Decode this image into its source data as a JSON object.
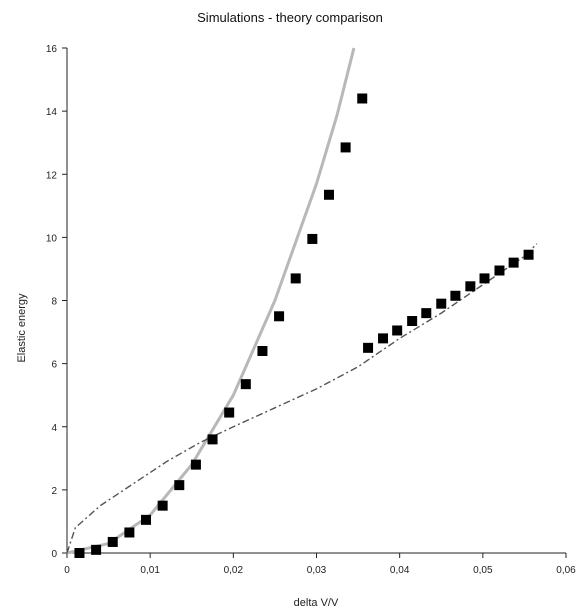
{
  "chart_data": {
    "type": "scatter",
    "title": "Simulations - theory comparison",
    "xlabel": "delta V/V",
    "ylabel": "Elastic energy",
    "xlim": [
      0,
      0.06
    ],
    "ylim": [
      0,
      16
    ],
    "x_ticks": [
      0,
      0.01,
      0.02,
      0.03,
      0.04,
      0.05,
      0.06
    ],
    "x_tick_labels": [
      "0",
      "0,01",
      "0,02",
      "0,03",
      "0,04",
      "0,05",
      "0,06"
    ],
    "y_ticks": [
      0,
      2,
      4,
      6,
      8,
      10,
      12,
      14,
      16
    ],
    "y_tick_labels": [
      "0",
      "2",
      "4",
      "6",
      "8",
      "10",
      "12",
      "14",
      "16"
    ],
    "grid": false,
    "legend": "none",
    "series": [
      {
        "kind": "line",
        "style": "solid",
        "color": "#b8b8b8",
        "x": [
          0.0,
          0.005,
          0.01,
          0.015,
          0.02,
          0.025,
          0.03,
          0.0325,
          0.0345
        ],
        "y": [
          0.0,
          0.3,
          1.2,
          2.8,
          5.0,
          8.0,
          11.7,
          13.9,
          16.0
        ]
      },
      {
        "kind": "line",
        "style": "dash-dot",
        "color": "#555555",
        "x": [
          0.0,
          0.001,
          0.004,
          0.008,
          0.012,
          0.016,
          0.02,
          0.025,
          0.03,
          0.035,
          0.04,
          0.045,
          0.05,
          0.055,
          0.0565
        ],
        "y": [
          0.0,
          0.8,
          1.5,
          2.2,
          2.9,
          3.5,
          4.0,
          4.6,
          5.2,
          5.9,
          6.8,
          7.6,
          8.5,
          9.4,
          9.8
        ]
      },
      {
        "kind": "markers",
        "color": "#000000",
        "x": [
          0.0015,
          0.0035,
          0.0055,
          0.0075,
          0.0095,
          0.0115,
          0.0135,
          0.0155,
          0.0175,
          0.0195,
          0.0215,
          0.0235,
          0.0255,
          0.0275,
          0.0295,
          0.0315,
          0.0335,
          0.0355
        ],
        "y": [
          0.0,
          0.1,
          0.35,
          0.65,
          1.05,
          1.5,
          2.15,
          2.8,
          3.6,
          4.45,
          5.35,
          6.4,
          7.5,
          8.7,
          9.95,
          11.35,
          12.85,
          14.4
        ]
      },
      {
        "kind": "markers",
        "color": "#000000",
        "x": [
          0.0362,
          0.038,
          0.0397,
          0.0415,
          0.0432,
          0.045,
          0.0467,
          0.0485,
          0.0502,
          0.052,
          0.0537,
          0.0555
        ],
        "y": [
          6.5,
          6.8,
          7.05,
          7.35,
          7.6,
          7.9,
          8.15,
          8.45,
          8.7,
          8.95,
          9.2,
          9.45
        ]
      }
    ]
  }
}
